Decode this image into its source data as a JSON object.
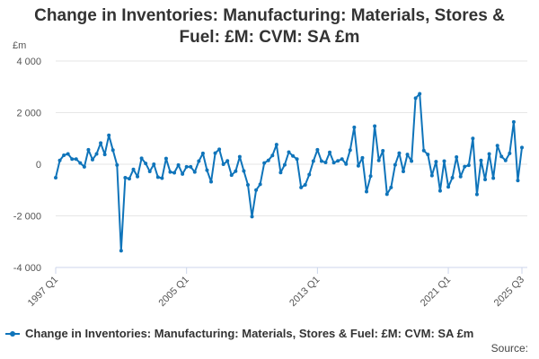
{
  "chart_data": {
    "type": "line",
    "title_lines": [
      "Change in Inventories: Manufacturing: Materials, Stores &",
      "Fuel: £M: CVM: SA £m"
    ],
    "y_unit": "£m",
    "ylim": [
      -4000,
      4000
    ],
    "y_ticks": [
      4000,
      2000,
      0,
      -2000,
      -4000
    ],
    "y_tick_labels": [
      "4 000",
      "2 000",
      "0",
      "-2 000",
      "-4 000"
    ],
    "x_tick_labels": [
      "1997 Q1",
      "2005 Q1",
      "2013 Q1",
      "2021 Q1",
      "2025 Q3"
    ],
    "x_tick_index": [
      0,
      32,
      64,
      96,
      114
    ],
    "grid": "horizontal",
    "legend_position": "bottom",
    "color": "#0f74ba",
    "series": [
      {
        "name": "Change in Inventories: Manufacturing: Materials, Stores & Fuel: £M: CVM: SA £m",
        "start": "1997 Q1",
        "end": "2025 Q3",
        "values": [
          -520,
          150,
          350,
          400,
          200,
          200,
          50,
          -100,
          560,
          180,
          400,
          820,
          380,
          1120,
          550,
          -30,
          -3350,
          -520,
          -560,
          -200,
          -480,
          230,
          30,
          -280,
          0,
          -500,
          -540,
          220,
          -300,
          -330,
          -30,
          -380,
          -100,
          -100,
          -300,
          120,
          420,
          -230,
          -680,
          430,
          580,
          0,
          130,
          -420,
          -270,
          290,
          -260,
          -800,
          -2030,
          -1000,
          -780,
          50,
          150,
          340,
          760,
          -320,
          -20,
          470,
          320,
          200,
          -900,
          -800,
          -400,
          120,
          560,
          120,
          70,
          460,
          60,
          130,
          200,
          10,
          550,
          1430,
          -60,
          250,
          -1060,
          -460,
          1480,
          150,
          520,
          -1160,
          -900,
          -20,
          430,
          -280,
          380,
          120,
          2560,
          2730,
          530,
          380,
          -440,
          100,
          -1030,
          120,
          -880,
          -520,
          280,
          -480,
          -90,
          -40,
          1000,
          -1170,
          150,
          -590,
          400,
          -540,
          720,
          300,
          150,
          420,
          1640,
          -630,
          650
        ]
      }
    ]
  },
  "source_label": "Source:"
}
